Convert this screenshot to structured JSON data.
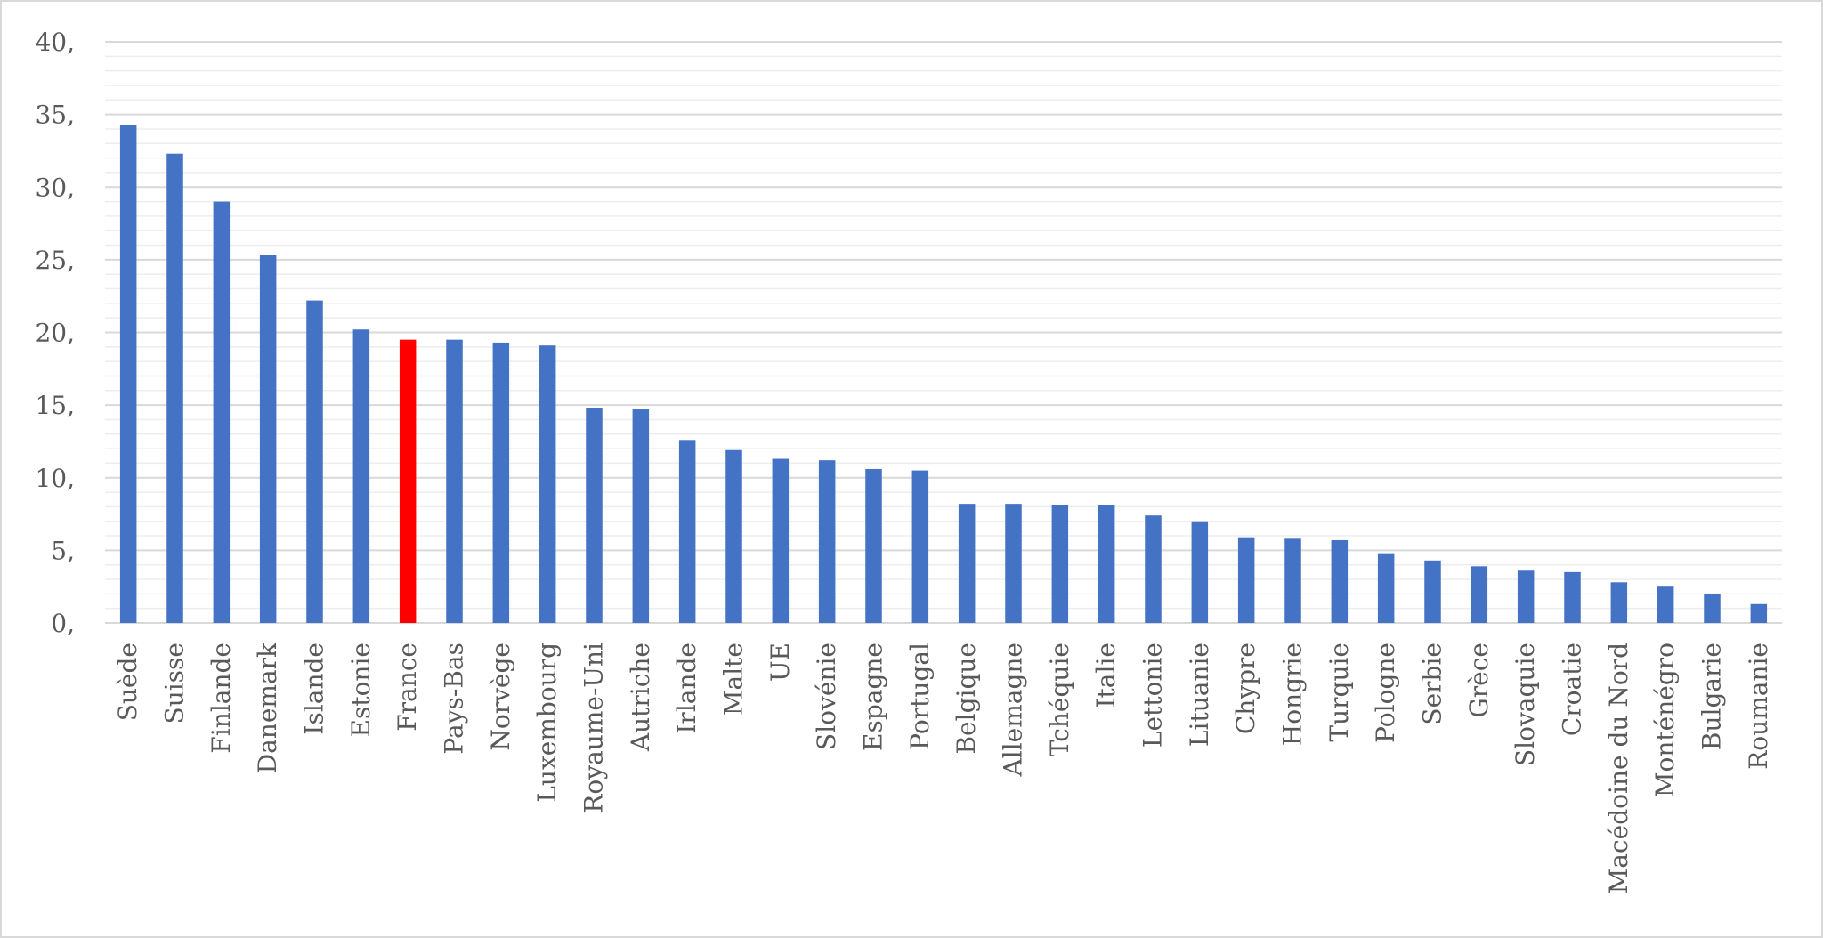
{
  "chart_data": {
    "type": "bar",
    "title": "",
    "xlabel": "",
    "ylabel": "",
    "ylim": [
      0,
      40
    ],
    "y_ticks": [
      0,
      5,
      10,
      15,
      20,
      25,
      30,
      35,
      40
    ],
    "y_tick_labels": [
      "0,",
      "5,",
      "10,",
      "15,",
      "20,",
      "25,",
      "30,",
      "35,",
      "40,"
    ],
    "minor_grid_step": 1,
    "grid": true,
    "legend": "none",
    "categories": [
      "Suède",
      "Suisse",
      "Finlande",
      "Danemark",
      "Islande",
      "Estonie",
      "France",
      "Pays-Bas",
      "Norvège",
      "Luxembourg",
      "Royaume-Uni",
      "Autriche",
      "Irlande",
      "Malte",
      "UE",
      "Slovénie",
      "Espagne",
      "Portugal",
      "Belgique",
      "Allemagne",
      "Tchéquie",
      "Italie",
      "Lettonie",
      "Lituanie",
      "Chypre",
      "Hongrie",
      "Turquie",
      "Pologne",
      "Serbie",
      "Grèce",
      "Slovaquie",
      "Croatie",
      "Macédoine du Nord",
      "Monténégro",
      "Bulgarie",
      "Roumanie"
    ],
    "values": [
      34.3,
      32.3,
      29.0,
      25.3,
      22.2,
      20.2,
      19.5,
      19.5,
      19.3,
      19.1,
      14.8,
      14.7,
      12.6,
      11.9,
      11.3,
      11.2,
      10.6,
      10.5,
      8.2,
      8.2,
      8.1,
      8.1,
      7.4,
      7.0,
      5.9,
      5.8,
      5.7,
      4.8,
      4.3,
      3.9,
      3.6,
      3.5,
      2.8,
      2.5,
      2.0,
      1.3
    ],
    "highlight_category": "France",
    "bar_color": "#4472c4",
    "highlight_color": "#ff0000",
    "grid_color": "#d9d9d9",
    "minor_grid_color": "#ededed"
  }
}
